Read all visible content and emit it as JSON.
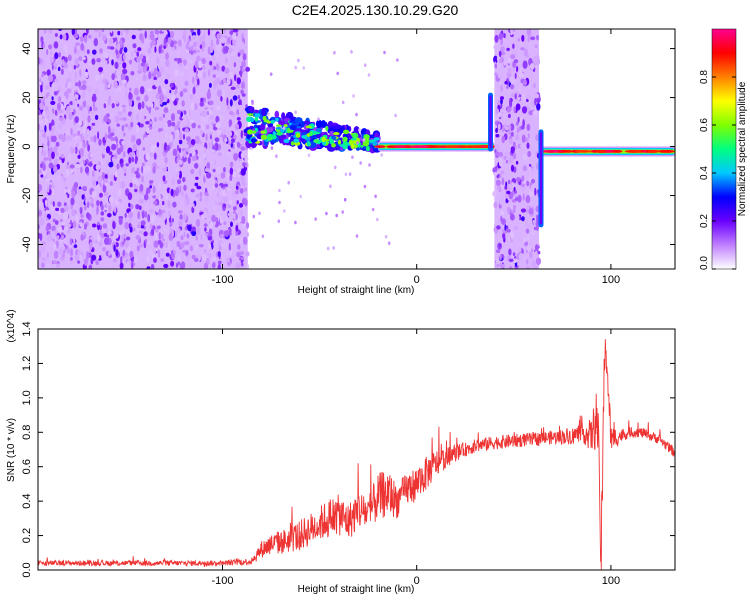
{
  "title": "C2E4.2025.130.10.29.G20",
  "chart_data": [
    {
      "type": "heatmap",
      "xlabel": "Height of straight line (km)",
      "ylabel": "Frequency (Hz)",
      "xlim": [
        -195,
        133
      ],
      "ylim": [
        -50,
        48
      ],
      "x_ticks": [
        -100,
        0,
        100
      ],
      "x_tick_labels": [
        "-100",
        "0",
        "100"
      ],
      "y_ticks": [
        -40,
        -20,
        0,
        20,
        40
      ],
      "y_tick_labels": [
        "-40",
        "-20",
        "0",
        "20",
        "40"
      ],
      "colorbar": {
        "label": "Normalized spectral amplitude",
        "range": [
          0,
          1
        ],
        "ticks": [
          0,
          0.2,
          0.4,
          0.6,
          0.8
        ],
        "tick_labels": [
          "0.0",
          "0.2",
          "0.4",
          "0.6",
          "0.8"
        ],
        "colormap": [
          "#ffffff",
          "#c080ff",
          "#6a00ff",
          "#0000ff",
          "#00c8ff",
          "#00ff80",
          "#80ff00",
          "#ffff00",
          "#ff8000",
          "#ff0000",
          "#ff0090"
        ]
      },
      "regions": [
        {
          "x_start": -195,
          "x_end": -87,
          "kind": "broadband noise",
          "freq_range": [
            -50,
            48
          ],
          "amplitude": 0.15
        },
        {
          "x_start": -87,
          "x_end": -20,
          "kind": "scattered signal",
          "freq_range": [
            -5,
            12
          ],
          "amplitude": 0.35
        },
        {
          "x_start": -20,
          "x_end": 40,
          "kind": "narrow line",
          "freq_center": 0,
          "amplitude": 0.9
        },
        {
          "x_start": 40,
          "x_end": 63,
          "kind": "broadband noise",
          "freq_range": [
            -50,
            48
          ],
          "amplitude": 0.15
        },
        {
          "x_start": 63,
          "x_end": 133,
          "kind": "narrow line",
          "freq_center": -2,
          "amplitude": 0.9
        }
      ],
      "grid": false
    },
    {
      "type": "line",
      "xlabel": "Height of straight line (km)",
      "ylabel": "SNR (10 * v/v)",
      "y_multiplier_label": "(x10^4)",
      "xlim": [
        -195,
        133
      ],
      "ylim": [
        0,
        1.4
      ],
      "x_ticks": [
        -100,
        0,
        100
      ],
      "x_tick_labels": [
        "-100",
        "0",
        "100"
      ],
      "y_ticks": [
        0,
        0.2,
        0.4,
        0.6,
        0.8,
        1.0,
        1.2,
        1.4
      ],
      "y_tick_labels": [
        "0.0",
        "0.2",
        "0.4",
        "0.6",
        "0.8",
        "1.0",
        "1.2",
        "1.4"
      ],
      "grid": false,
      "series": [
        {
          "color": "#ee3333",
          "x": [
            -195,
            -180,
            -160,
            -140,
            -120,
            -100,
            -85,
            -80,
            -75,
            -70,
            -60,
            -50,
            -45,
            -40,
            -35,
            -30,
            -25,
            -20,
            -15,
            -10,
            -5,
            0,
            5,
            10,
            15,
            20,
            25,
            30,
            40,
            50,
            60,
            70,
            80,
            85,
            90,
            93,
            95,
            97,
            100,
            105,
            110,
            115,
            120,
            125,
            133
          ],
          "y": [
            0.04,
            0.04,
            0.04,
            0.04,
            0.04,
            0.04,
            0.05,
            0.12,
            0.15,
            0.16,
            0.2,
            0.27,
            0.3,
            0.32,
            0.28,
            0.35,
            0.33,
            0.42,
            0.45,
            0.4,
            0.47,
            0.5,
            0.56,
            0.62,
            0.65,
            0.68,
            0.7,
            0.72,
            0.74,
            0.75,
            0.76,
            0.77,
            0.78,
            0.8,
            0.78,
            0.9,
            0.05,
            1.4,
            0.76,
            0.78,
            0.8,
            0.8,
            0.78,
            0.76,
            0.68
          ],
          "noise": [
            0.015,
            0.015,
            0.015,
            0.015,
            0.015,
            0.015,
            0.02,
            0.05,
            0.06,
            0.07,
            0.09,
            0.1,
            0.12,
            0.12,
            0.11,
            0.12,
            0.1,
            0.14,
            0.14,
            0.1,
            0.1,
            0.1,
            0.1,
            0.08,
            0.06,
            0.05,
            0.04,
            0.04,
            0.04,
            0.04,
            0.04,
            0.04,
            0.05,
            0.05,
            0.1,
            0.2,
            0.2,
            0.2,
            0.08,
            0.04,
            0.03,
            0.03,
            0.03,
            0.03,
            0.03
          ]
        }
      ]
    }
  ]
}
